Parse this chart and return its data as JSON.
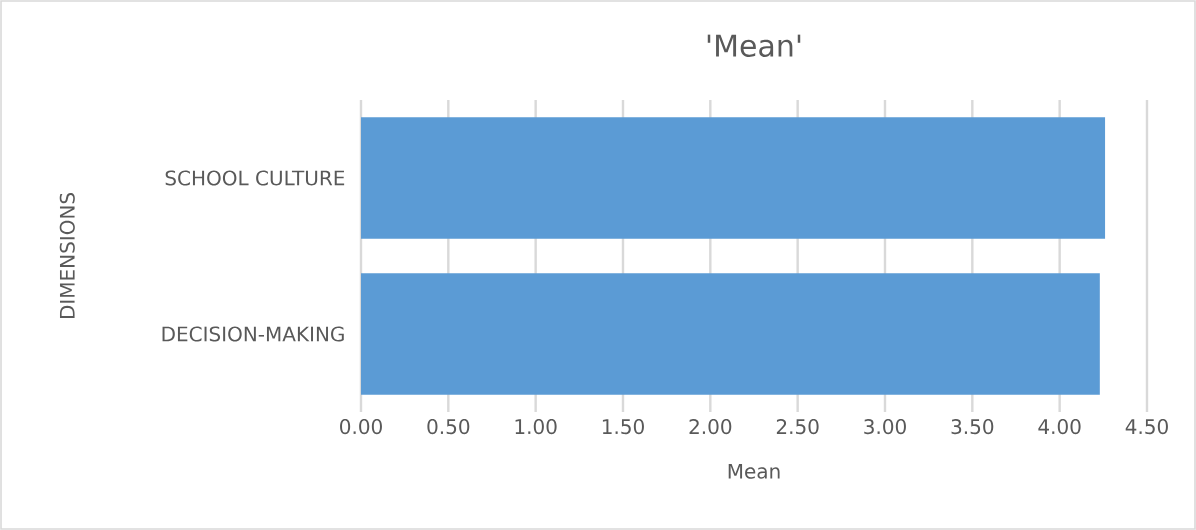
{
  "chart_data": {
    "type": "bar",
    "orientation": "horizontal",
    "title": "'Mean'",
    "xlabel": "Mean",
    "ylabel": "DIMENSIONS",
    "categories": [
      "SCHOOL CULTURE",
      "DECISION-MAKING"
    ],
    "values": [
      4.26,
      4.23
    ],
    "color": "#5b9bd5",
    "xlim": [
      0,
      4.5
    ],
    "xticks": [
      {
        "value": 0,
        "label": "0.00"
      },
      {
        "value": 0.5,
        "label": "0.50"
      },
      {
        "value": 1,
        "label": "1.00"
      },
      {
        "value": 1.5,
        "label": "1.50"
      },
      {
        "value": 2,
        "label": "2.00"
      },
      {
        "value": 2.5,
        "label": "2.50"
      },
      {
        "value": 3,
        "label": "3.00"
      },
      {
        "value": 3.5,
        "label": "3.50"
      },
      {
        "value": 4,
        "label": "4.00"
      },
      {
        "value": 4.5,
        "label": "4.50"
      }
    ],
    "grid": "x"
  }
}
